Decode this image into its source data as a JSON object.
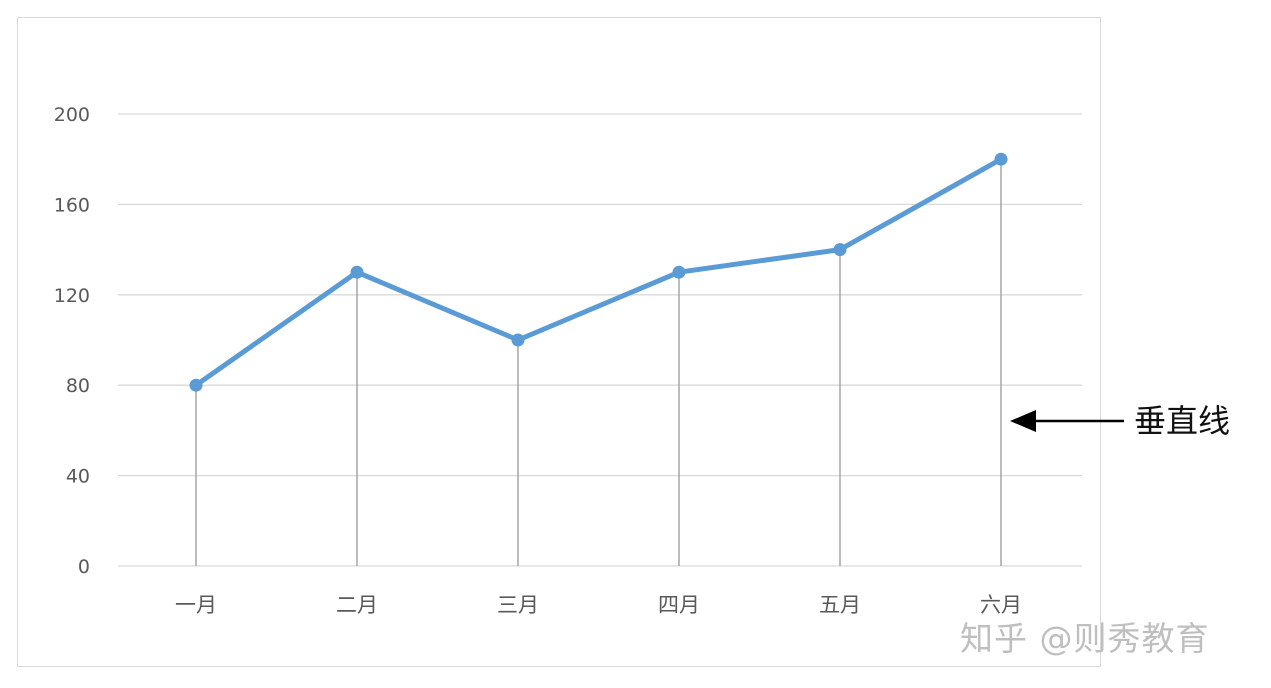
{
  "chart_data": {
    "type": "line",
    "categories": [
      "一月",
      "二月",
      "三月",
      "四月",
      "五月",
      "六月"
    ],
    "series": [
      {
        "values": [
          80,
          130,
          100,
          130,
          140,
          180
        ]
      }
    ],
    "ylim": [
      0,
      200
    ],
    "yticks": [
      0,
      40,
      80,
      120,
      160,
      200
    ],
    "ytick_labels": [
      "0",
      "40",
      "80",
      "120",
      "160",
      "200"
    ],
    "grid": "horizontal",
    "drop_lines": true,
    "colors": {
      "line": "#5b9bd5",
      "gridline": "#d9d9d9",
      "drop_line": "#a6a6a6",
      "axis_text": "#595959"
    }
  },
  "annotation": {
    "label": "垂直线",
    "arrow_direction": "left"
  },
  "watermark": "知乎 @则秀教育"
}
